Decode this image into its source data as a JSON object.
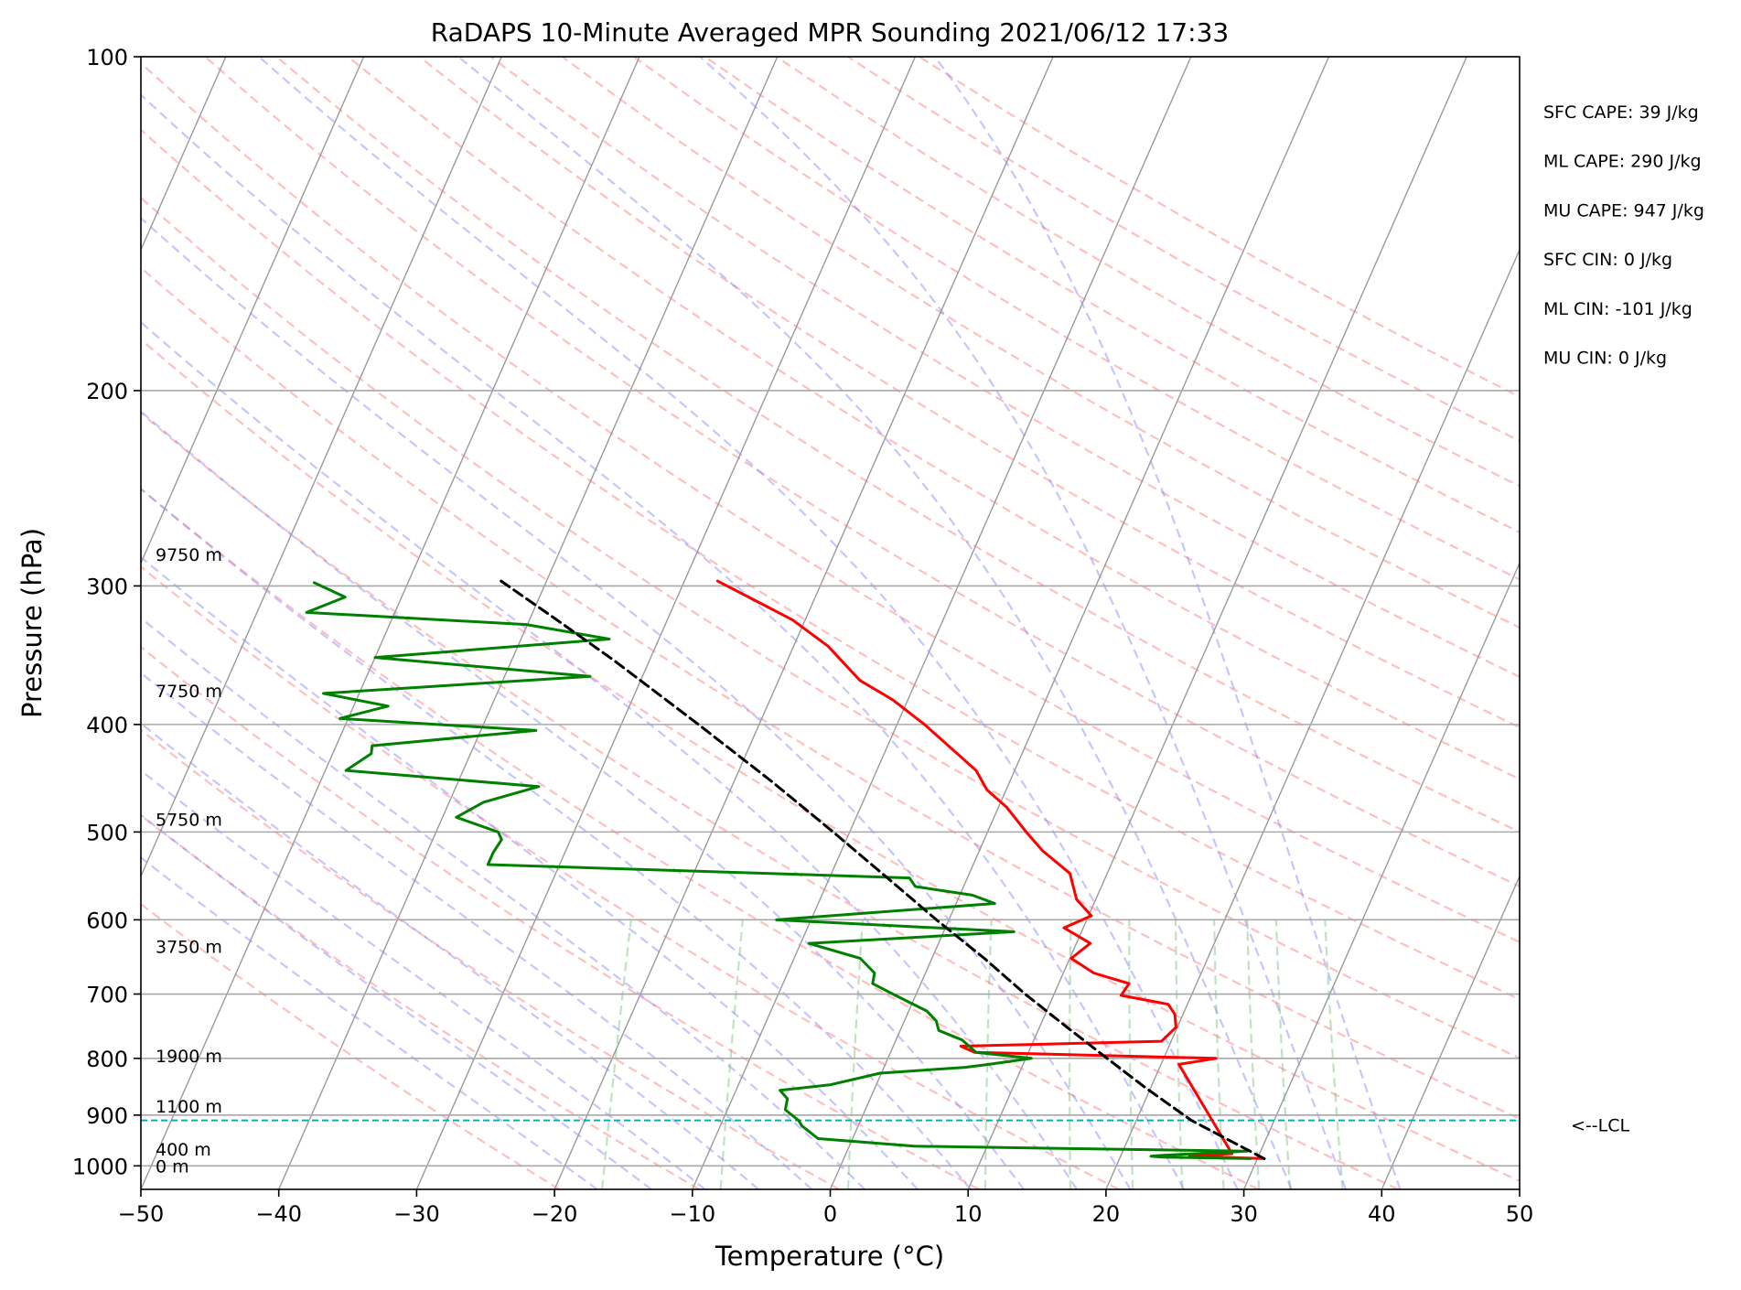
{
  "chart_data": {
    "type": "line",
    "subtype": "skew-T log-P sounding",
    "title": "RaDAPS 10-Minute Averaged MPR Sounding 2021/06/12 17:33",
    "xlabel": "Temperature (°C)",
    "ylabel": "Pressure (hPa)",
    "xlim": [
      -50,
      50
    ],
    "ylim": [
      1050,
      100
    ],
    "yscale": "log",
    "x_ticks": [
      -50,
      -40,
      -30,
      -20,
      -10,
      0,
      10,
      20,
      30,
      40,
      50
    ],
    "x_tick_labels": [
      "−50",
      "−40",
      "−30",
      "−20",
      "−10",
      "0",
      "10",
      "20",
      "30",
      "40",
      "50"
    ],
    "y_ticks": [
      100,
      200,
      300,
      400,
      500,
      600,
      700,
      800,
      900,
      1000
    ],
    "y_tick_labels": [
      "100",
      "200",
      "300",
      "400",
      "500",
      "600",
      "700",
      "800",
      "900",
      "1000"
    ],
    "grid": true,
    "background_lines": {
      "isotherms": "gray solid",
      "dry_adiabats": "red dashed",
      "moist_adiabats": "blue dashed",
      "mixing_ratio": "green dashed"
    },
    "height_labels": [
      {
        "text": "9750 m",
        "pressure": 281
      },
      {
        "text": "7750 m",
        "pressure": 373
      },
      {
        "text": "5750 m",
        "pressure": 487
      },
      {
        "text": "3750 m",
        "pressure": 634
      },
      {
        "text": "1900 m",
        "pressure": 796
      },
      {
        "text": "1100 m",
        "pressure": 883
      },
      {
        "text": "400 m",
        "pressure": 966
      },
      {
        "text": "0 m",
        "pressure": 1000
      }
    ],
    "stats": [
      "SFC CAPE: 39 J/kg",
      "ML CAPE: 290 J/kg",
      "MU CAPE: 947 J/kg",
      "SFC CIN: 0 J/kg",
      "ML CIN: -101 J/kg",
      "MU CIN: 0 J/kg"
    ],
    "lcl": {
      "pressure": 910,
      "label": "<--LCL"
    },
    "series": [
      {
        "name": "Temperature",
        "color": "#ff0000",
        "points": [
          {
            "p": 985,
            "t": 30.5
          },
          {
            "p": 980,
            "t": 25.0
          },
          {
            "p": 975,
            "t": 28.0
          },
          {
            "p": 810,
            "t": 21.3
          },
          {
            "p": 800,
            "t": 23.8
          },
          {
            "p": 790,
            "t": 6.1
          },
          {
            "p": 780,
            "t": 4.9
          },
          {
            "p": 772,
            "t": 19.3
          },
          {
            "p": 750,
            "t": 19.9
          },
          {
            "p": 730,
            "t": 19.4
          },
          {
            "p": 715,
            "t": 18.6
          },
          {
            "p": 702,
            "t": 14.9
          },
          {
            "p": 685,
            "t": 15.1
          },
          {
            "p": 670,
            "t": 12.2
          },
          {
            "p": 650,
            "t": 10.1
          },
          {
            "p": 630,
            "t": 11.0
          },
          {
            "p": 610,
            "t": 8.6
          },
          {
            "p": 595,
            "t": 10.2
          },
          {
            "p": 575,
            "t": 8.6
          },
          {
            "p": 545,
            "t": 7.3
          },
          {
            "p": 520,
            "t": 4.6
          },
          {
            "p": 500,
            "t": 2.8
          },
          {
            "p": 475,
            "t": 0.6
          },
          {
            "p": 458,
            "t": -1.4
          },
          {
            "p": 440,
            "t": -2.8
          },
          {
            "p": 425,
            "t": -4.7
          },
          {
            "p": 400,
            "t": -8.0
          },
          {
            "p": 380,
            "t": -11.1
          },
          {
            "p": 365,
            "t": -14.1
          },
          {
            "p": 340,
            "t": -17.5
          },
          {
            "p": 322,
            "t": -20.9
          },
          {
            "p": 309,
            "t": -24.3
          },
          {
            "p": 297,
            "t": -27.6
          }
        ]
      },
      {
        "name": "Dewpoint",
        "color": "#008000",
        "points": [
          {
            "p": 985,
            "t": 29.5
          },
          {
            "p": 982,
            "t": 23.0
          },
          {
            "p": 980,
            "t": 22.2
          },
          {
            "p": 978,
            "t": 23.2
          },
          {
            "p": 970,
            "t": 29.0
          },
          {
            "p": 960,
            "t": 4.7
          },
          {
            "p": 945,
            "t": -2.5
          },
          {
            "p": 920,
            "t": -4.1
          },
          {
            "p": 910,
            "t": -4.5
          },
          {
            "p": 890,
            "t": -5.8
          },
          {
            "p": 870,
            "t": -6.0
          },
          {
            "p": 855,
            "t": -6.8
          },
          {
            "p": 845,
            "t": -3.3
          },
          {
            "p": 825,
            "t": -0.1
          },
          {
            "p": 815,
            "t": 5.9
          },
          {
            "p": 810,
            "t": 7.5
          },
          {
            "p": 800,
            "t": 10.4
          },
          {
            "p": 790,
            "t": 6.2
          },
          {
            "p": 770,
            "t": 4.8
          },
          {
            "p": 755,
            "t": 2.8
          },
          {
            "p": 740,
            "t": 2.3
          },
          {
            "p": 725,
            "t": 1.3
          },
          {
            "p": 700,
            "t": -1.7
          },
          {
            "p": 685,
            "t": -3.5
          },
          {
            "p": 670,
            "t": -3.7
          },
          {
            "p": 650,
            "t": -5.2
          },
          {
            "p": 630,
            "t": -9.4
          },
          {
            "p": 615,
            "t": 5.1
          },
          {
            "p": 600,
            "t": -12.5
          },
          {
            "p": 580,
            "t": 2.8
          },
          {
            "p": 570,
            "t": 0.9
          },
          {
            "p": 560,
            "t": -3.5
          },
          {
            "p": 550,
            "t": -4.2
          },
          {
            "p": 535,
            "t": -35.2
          },
          {
            "p": 522,
            "t": -35.2
          },
          {
            "p": 508,
            "t": -35.0
          },
          {
            "p": 500,
            "t": -35.5
          },
          {
            "p": 485,
            "t": -39.0
          },
          {
            "p": 470,
            "t": -37.5
          },
          {
            "p": 455,
            "t": -34.0
          },
          {
            "p": 440,
            "t": -48.5
          },
          {
            "p": 425,
            "t": -47.2
          },
          {
            "p": 418,
            "t": -47.4
          },
          {
            "p": 405,
            "t": -36.0
          },
          {
            "p": 395,
            "t": -50.6
          },
          {
            "p": 385,
            "t": -47.5
          },
          {
            "p": 375,
            "t": -52.6
          },
          {
            "p": 362,
            "t": -33.8
          },
          {
            "p": 348,
            "t": -50.0
          },
          {
            "p": 335,
            "t": -33.6
          },
          {
            "p": 325,
            "t": -40.1
          },
          {
            "p": 317,
            "t": -56.4
          },
          {
            "p": 307,
            "t": -54.1
          },
          {
            "p": 298,
            "t": -56.8
          }
        ]
      },
      {
        "name": "Parcel",
        "color": "#000000",
        "points": [
          {
            "p": 985,
            "t": 30.5
          },
          {
            "p": 910,
            "t": 24.0
          },
          {
            "p": 850,
            "t": 19.6
          },
          {
            "p": 800,
            "t": 15.9
          },
          {
            "p": 750,
            "t": 12.0
          },
          {
            "p": 700,
            "t": 7.9
          },
          {
            "p": 650,
            "t": 3.8
          },
          {
            "p": 600,
            "t": -0.9
          },
          {
            "p": 550,
            "t": -5.8
          },
          {
            "p": 500,
            "t": -11.2
          },
          {
            "p": 450,
            "t": -17.3
          },
          {
            "p": 400,
            "t": -24.4
          },
          {
            "p": 350,
            "t": -32.6
          },
          {
            "p": 320,
            "t": -38.4
          },
          {
            "p": 297,
            "t": -43.3
          }
        ]
      }
    ]
  }
}
